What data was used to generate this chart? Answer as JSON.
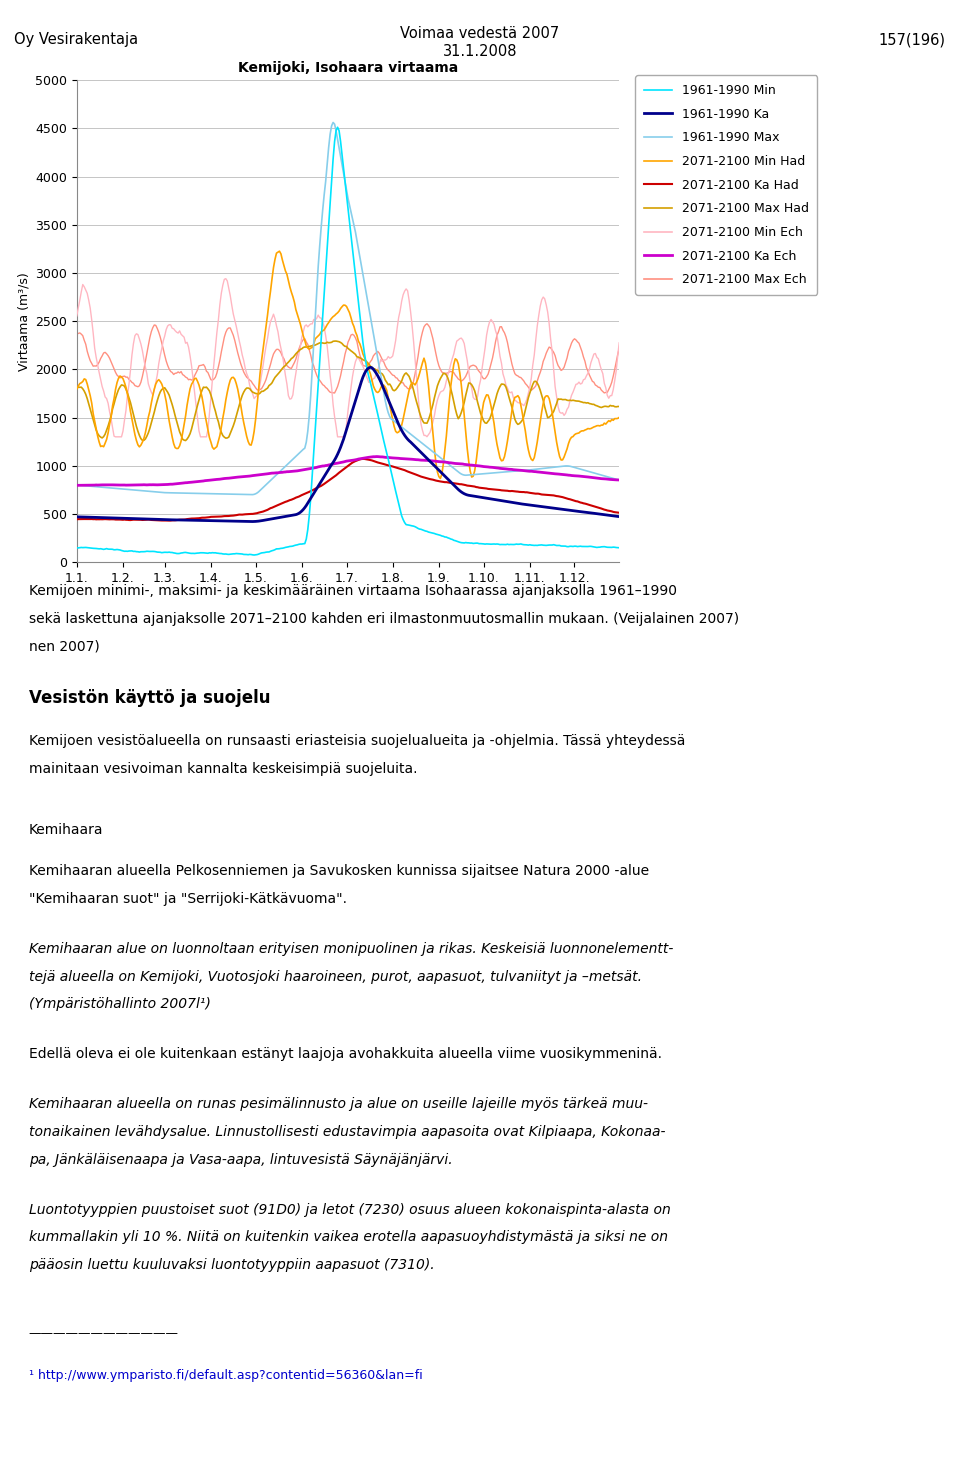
{
  "title": "Kemijoki, Isohaara virtaama",
  "header_left": "Oy Vesirakentaja",
  "header_center": "Voimaa vedestä 2007\n31.1.2008",
  "header_right": "157(196)",
  "ylabel": "Virtaama (m³/s)",
  "ylim": [
    0,
    5000
  ],
  "yticks": [
    0,
    500,
    1000,
    1500,
    2000,
    2500,
    3000,
    3500,
    4000,
    4500,
    5000
  ],
  "xtick_labels": [
    "1.1.",
    "1.2.",
    "1.3.",
    "1.4.",
    "1.5.",
    "1.6.",
    "1.7.",
    "1.8.",
    "1.9.",
    "1.10.",
    "1.11.",
    "1.12."
  ],
  "colors": {
    "min_1961": "#00E5FF",
    "ka_1961": "#00008B",
    "max_1961": "#87CEEB",
    "min_had": "#FFA500",
    "ka_had": "#CC0000",
    "max_had": "#D4A000",
    "min_ech": "#FFB6C1",
    "ka_ech": "#CC00CC",
    "max_ech": "#FF9080"
  },
  "legend_labels": [
    "1961-1990 Min",
    "1961-1990 Ka",
    "1961-1990 Max",
    "2071-2100 Min Had",
    "2071-2100 Ka Had",
    "2071-2100 Max Had",
    "2071-2100 Min Ech",
    "2071-2100 Ka Ech",
    "2071-2100 Max Ech"
  ]
}
